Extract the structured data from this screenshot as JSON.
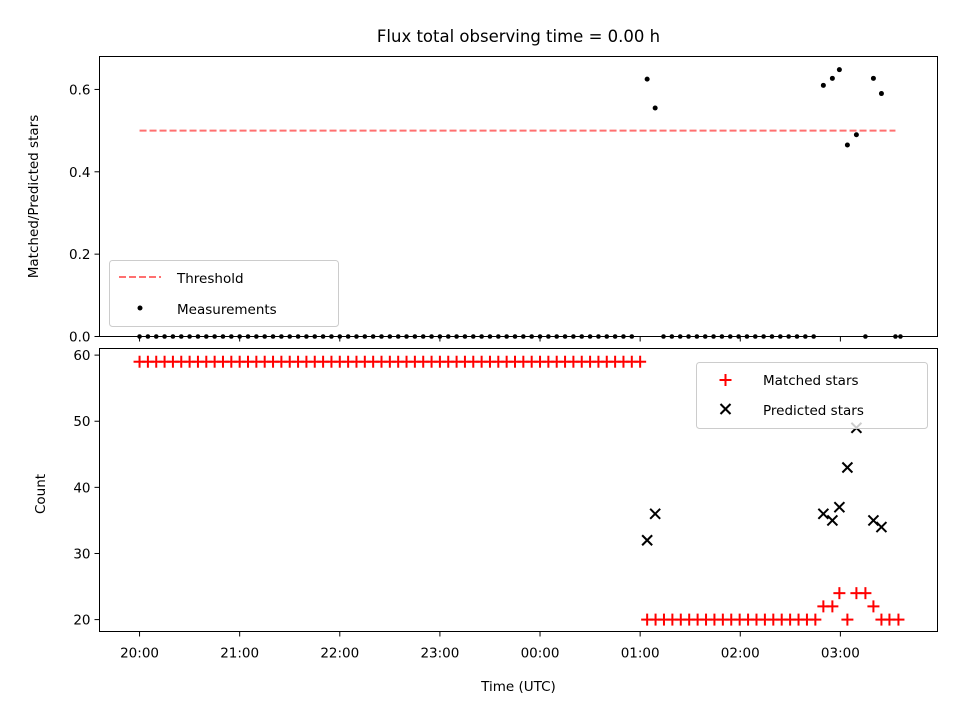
{
  "chart_data": [
    {
      "type": "scatter",
      "title": "Flux total observing time = 0.00 h",
      "ylabel": "Matched/Predicted stars",
      "xlabel": "",
      "ylim": [
        0,
        0.68
      ],
      "yticks": [
        0.0,
        0.2,
        0.4,
        0.6
      ],
      "ytick_labels": [
        "0.0",
        "0.2",
        "0.4",
        "0.6"
      ],
      "xlim_hours": [
        -0.4,
        7.97
      ],
      "legend_loc": "lower-left",
      "threshold": {
        "name": "Threshold",
        "value": 0.5,
        "x_start": 0.0,
        "x_end": 7.55,
        "color": "#ff7070"
      },
      "measurements": {
        "name": "Measurements",
        "color": "#000000",
        "zeros_x": [
          0.0,
          0.0833,
          0.1667,
          0.25,
          0.3333,
          0.4167,
          0.5,
          0.5833,
          0.6667,
          0.75,
          0.8333,
          0.9167,
          1.0,
          1.0833,
          1.1667,
          1.25,
          1.3333,
          1.4167,
          1.5,
          1.5833,
          1.6667,
          1.75,
          1.8333,
          1.9167,
          2.0,
          2.0833,
          2.1667,
          2.25,
          2.3333,
          2.4167,
          2.5,
          2.5833,
          2.6667,
          2.75,
          2.8333,
          2.9167,
          3.0,
          3.0833,
          3.1667,
          3.25,
          3.3333,
          3.4167,
          3.5,
          3.5833,
          3.6667,
          3.75,
          3.8333,
          3.9167,
          4.0,
          4.0833,
          4.1667,
          4.25,
          4.3333,
          4.4167,
          4.5,
          4.5833,
          4.6667,
          4.75,
          4.8333,
          4.9167,
          5.2333,
          5.3167,
          5.4,
          5.4833,
          5.5667,
          5.65,
          5.7333,
          5.8167,
          5.9,
          5.9833,
          6.0667,
          6.15,
          6.2333,
          6.3167,
          6.4,
          6.4833,
          6.5667,
          6.65,
          6.7333,
          7.25,
          7.55,
          7.6
        ],
        "points": [
          {
            "x": 5.07,
            "y": 0.625
          },
          {
            "x": 5.15,
            "y": 0.555
          },
          {
            "x": 6.83,
            "y": 0.61
          },
          {
            "x": 6.92,
            "y": 0.627
          },
          {
            "x": 6.99,
            "y": 0.648
          },
          {
            "x": 7.07,
            "y": 0.465
          },
          {
            "x": 7.16,
            "y": 0.49
          },
          {
            "x": 7.33,
            "y": 0.627
          },
          {
            "x": 7.41,
            "y": 0.59
          }
        ]
      }
    },
    {
      "type": "scatter",
      "title": "",
      "ylabel": "Count",
      "xlabel": "Time (UTC)",
      "ylim": [
        18.2,
        61.0
      ],
      "yticks": [
        20,
        30,
        40,
        50,
        60
      ],
      "ytick_labels": [
        "20",
        "30",
        "40",
        "50",
        "60"
      ],
      "xlim_hours": [
        -0.4,
        7.97
      ],
      "xticks_hours": [
        0,
        1,
        2,
        3,
        4,
        5,
        6,
        7
      ],
      "xtick_labels": [
        "20:00",
        "21:00",
        "22:00",
        "23:00",
        "00:00",
        "01:00",
        "02:00",
        "03:00"
      ],
      "legend_loc": "upper-right",
      "series": [
        {
          "name": "Matched stars",
          "marker": "plus",
          "color": "#ff0000",
          "segments": [
            {
              "x_start": 0.0,
              "x_end": 5.0,
              "count": 61,
              "value": 59
            },
            {
              "x_start": 5.07,
              "x_end": 6.75,
              "count": 21,
              "value": 20
            }
          ],
          "points": [
            {
              "x": 6.83,
              "y": 22
            },
            {
              "x": 6.92,
              "y": 22
            },
            {
              "x": 6.99,
              "y": 24
            },
            {
              "x": 7.07,
              "y": 20
            },
            {
              "x": 7.16,
              "y": 24
            },
            {
              "x": 7.25,
              "y": 24
            },
            {
              "x": 7.33,
              "y": 22
            },
            {
              "x": 7.41,
              "y": 20
            },
            {
              "x": 7.49,
              "y": 20
            },
            {
              "x": 7.58,
              "y": 20
            }
          ]
        },
        {
          "name": "Predicted stars",
          "marker": "x",
          "color": "#000000",
          "points": [
            {
              "x": 5.07,
              "y": 32
            },
            {
              "x": 5.15,
              "y": 36
            },
            {
              "x": 6.83,
              "y": 36
            },
            {
              "x": 6.92,
              "y": 35
            },
            {
              "x": 6.99,
              "y": 37
            },
            {
              "x": 7.07,
              "y": 43
            },
            {
              "x": 7.16,
              "y": 49
            },
            {
              "x": 7.33,
              "y": 35
            },
            {
              "x": 7.41,
              "y": 34
            }
          ]
        }
      ]
    }
  ]
}
